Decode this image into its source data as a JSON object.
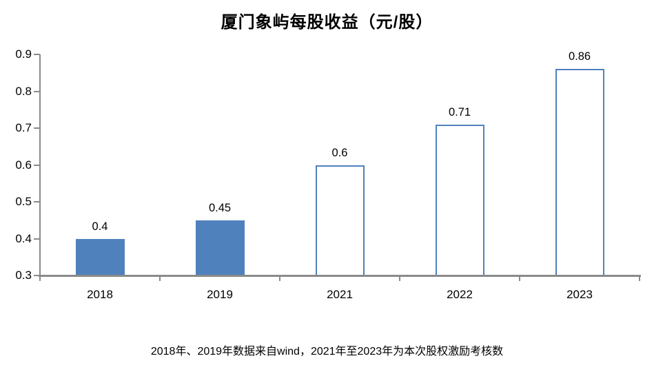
{
  "title": "厦门象屿每股收益（元/股）",
  "footnote": "2018年、2019年数据来自wind，2021年至2023年为本次股权激励考核数",
  "chart_data": {
    "type": "bar",
    "title": "厦门象屿每股收益（元/股）",
    "categories": [
      "2018",
      "2019",
      "2021",
      "2022",
      "2023"
    ],
    "values": [
      0.4,
      0.45,
      0.6,
      0.71,
      0.86
    ],
    "value_labels": [
      "0.4",
      "0.45",
      "0.6",
      "0.71",
      "0.86"
    ],
    "xlabel": "",
    "ylabel": "",
    "ylim": [
      0.3,
      0.9
    ],
    "ytick_step": 0.1,
    "yticks": [
      "0.3",
      "0.4",
      "0.5",
      "0.6",
      "0.7",
      "0.8",
      "0.9"
    ],
    "grid": false,
    "legend": "none",
    "annotation": "2018年、2019年数据来自wind，2021年至2023年为本次股权激励考核数",
    "bar_styles": [
      {
        "fill": "#4F81BD",
        "border": "none"
      },
      {
        "fill": "#4F81BD",
        "border": "none"
      },
      {
        "fill": "#FFFFFF",
        "border": "#4F81BD"
      },
      {
        "fill": "#FFFFFF",
        "border": "#4F81BD"
      },
      {
        "fill": "#FFFFFF",
        "border": "#4F81BD"
      }
    ],
    "colors": {
      "solid_bar": "#4F81BD",
      "hollow_bar_border": "#4F81BD",
      "axis": "#8A8A8A",
      "text": "#000000",
      "background": "#FFFFFF"
    }
  }
}
